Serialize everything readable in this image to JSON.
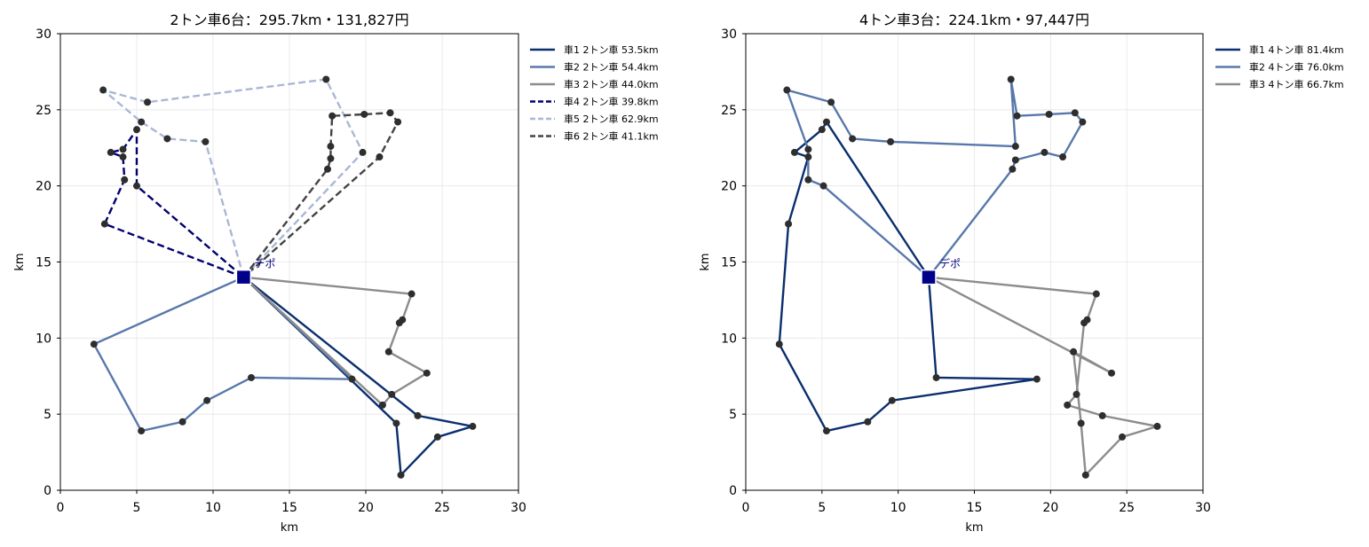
{
  "chart_data": [
    {
      "type": "line",
      "title": "2トン車6台：295.7km・131,827円",
      "xlabel": "km",
      "ylabel": "km",
      "xlim": [
        0,
        30
      ],
      "ylim": [
        0,
        30
      ],
      "xticks": [
        "0",
        "5",
        "10",
        "15",
        "20",
        "25",
        "30"
      ],
      "yticks": [
        "0",
        "5",
        "10",
        "15",
        "20",
        "25",
        "30"
      ],
      "grid": true,
      "legend_position": "outside-right",
      "depot": {
        "label": "デポ",
        "x": 12.0,
        "y": 14.0,
        "color": "#00008b"
      },
      "series": [
        {
          "name": "車1 2トン車 53.5km",
          "color": "#0a2e6e",
          "dash": "solid",
          "points": [
            [
              12,
              14
            ],
            [
              23.4,
              4.9
            ],
            [
              27.0,
              4.2
            ],
            [
              24.7,
              3.5
            ],
            [
              22.3,
              1.0
            ],
            [
              22.0,
              4.4
            ],
            [
              12,
              14
            ]
          ]
        },
        {
          "name": "車2 2トン車 54.4km",
          "color": "#5878ab",
          "dash": "solid",
          "points": [
            [
              12,
              14
            ],
            [
              2.2,
              9.6
            ],
            [
              5.3,
              3.9
            ],
            [
              8.0,
              4.5
            ],
            [
              9.6,
              5.9
            ],
            [
              12.5,
              7.4
            ],
            [
              19.1,
              7.3
            ],
            [
              12,
              14
            ]
          ]
        },
        {
          "name": "車3 2トン車 44.0km",
          "color": "#8c8c8c",
          "dash": "solid",
          "points": [
            [
              12,
              14
            ],
            [
              23.0,
              12.9
            ],
            [
              22.4,
              11.2
            ],
            [
              22.2,
              11.0
            ],
            [
              21.5,
              9.1
            ],
            [
              24.0,
              7.7
            ],
            [
              21.7,
              6.3
            ],
            [
              21.1,
              5.6
            ],
            [
              12,
              14
            ]
          ]
        },
        {
          "name": "車4 2トン車 39.8km",
          "color": "#000070",
          "dash": "dashed",
          "points": [
            [
              12,
              14
            ],
            [
              2.9,
              17.5
            ],
            [
              4.2,
              20.4
            ],
            [
              4.1,
              21.9
            ],
            [
              3.3,
              22.2
            ],
            [
              4.1,
              22.4
            ],
            [
              5.0,
              23.7
            ],
            [
              5.0,
              20.0
            ],
            [
              12,
              14
            ]
          ]
        },
        {
          "name": "車5 2トン車 62.9km",
          "color": "#a9b8d6",
          "dash": "dashed",
          "points": [
            [
              12,
              14
            ],
            [
              9.5,
              22.9
            ],
            [
              7.0,
              23.1
            ],
            [
              5.3,
              24.2
            ],
            [
              2.8,
              26.3
            ],
            [
              5.7,
              25.5
            ],
            [
              17.4,
              27.0
            ],
            [
              19.8,
              22.2
            ],
            [
              12,
              14
            ]
          ]
        },
        {
          "name": "車6 2トン車 41.1km",
          "color": "#444444",
          "dash": "dashed",
          "points": [
            [
              12,
              14
            ],
            [
              17.5,
              21.1
            ],
            [
              17.7,
              21.8
            ],
            [
              17.7,
              22.6
            ],
            [
              17.8,
              24.6
            ],
            [
              19.9,
              24.7
            ],
            [
              21.6,
              24.8
            ],
            [
              22.1,
              24.2
            ],
            [
              20.9,
              21.9
            ],
            [
              12,
              14
            ]
          ]
        }
      ]
    },
    {
      "type": "line",
      "title": "4トン車3台：224.1km・97,447円",
      "xlabel": "km",
      "ylabel": "km",
      "xlim": [
        0,
        30
      ],
      "ylim": [
        0,
        30
      ],
      "xticks": [
        "0",
        "5",
        "10",
        "15",
        "20",
        "25",
        "30"
      ],
      "yticks": [
        "0",
        "5",
        "10",
        "15",
        "20",
        "25",
        "30"
      ],
      "grid": true,
      "legend_position": "outside-right",
      "depot": {
        "label": "デポ",
        "x": 12.0,
        "y": 14.0,
        "color": "#00008b"
      },
      "series": [
        {
          "name": "車1 4トン車 81.4km",
          "color": "#0a2e6e",
          "dash": "solid",
          "points": [
            [
              12,
              14
            ],
            [
              12.5,
              7.4
            ],
            [
              19.1,
              7.3
            ],
            [
              9.6,
              5.9
            ],
            [
              8.0,
              4.5
            ],
            [
              5.3,
              3.9
            ],
            [
              2.2,
              9.6
            ],
            [
              2.8,
              17.5
            ],
            [
              4.1,
              21.9
            ],
            [
              3.2,
              22.2
            ],
            [
              5.0,
              23.7
            ],
            [
              5.3,
              24.2
            ],
            [
              12,
              14
            ]
          ]
        },
        {
          "name": "車2 4トン車 76.0km",
          "color": "#5878ab",
          "dash": "solid",
          "points": [
            [
              12,
              14
            ],
            [
              17.5,
              21.1
            ],
            [
              17.7,
              21.7
            ],
            [
              19.6,
              22.2
            ],
            [
              20.8,
              21.9
            ],
            [
              22.1,
              24.2
            ],
            [
              21.6,
              24.8
            ],
            [
              19.9,
              24.7
            ],
            [
              17.8,
              24.6
            ],
            [
              17.4,
              27.0
            ],
            [
              17.7,
              22.6
            ],
            [
              9.5,
              22.9
            ],
            [
              7.0,
              23.1
            ],
            [
              5.6,
              25.5
            ],
            [
              2.7,
              26.3
            ],
            [
              4.1,
              22.4
            ],
            [
              4.1,
              20.4
            ],
            [
              5.1,
              20.0
            ],
            [
              12,
              14
            ]
          ]
        },
        {
          "name": "車3 4トン車 66.7km",
          "color": "#8c8c8c",
          "dash": "solid",
          "points": [
            [
              12,
              14
            ],
            [
              23.0,
              12.9
            ],
            [
              22.4,
              11.2
            ],
            [
              22.2,
              11.0
            ],
            [
              21.7,
              6.3
            ],
            [
              21.1,
              5.6
            ],
            [
              23.4,
              4.9
            ],
            [
              27.0,
              4.2
            ],
            [
              24.7,
              3.5
            ],
            [
              22.3,
              1.0
            ],
            [
              22.0,
              4.4
            ],
            [
              21.5,
              9.1
            ],
            [
              24.0,
              7.7
            ],
            [
              12,
              14
            ]
          ]
        }
      ]
    }
  ]
}
